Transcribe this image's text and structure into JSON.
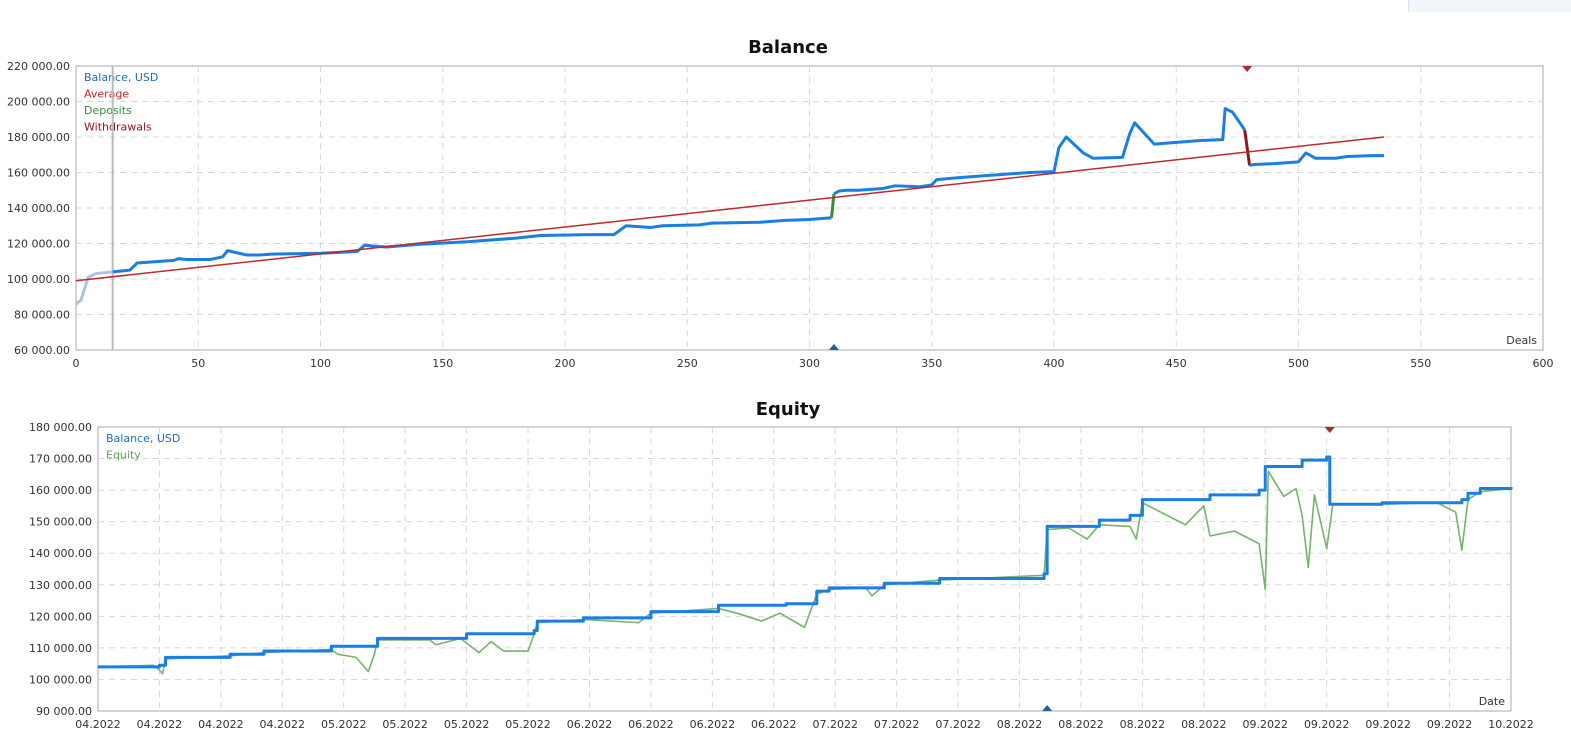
{
  "chart_data": [
    {
      "type": "line",
      "title": "Balance",
      "xlabel": "Deals",
      "xlim": [
        0,
        600
      ],
      "ylim": [
        60000,
        220000
      ],
      "xticks": [
        0,
        50,
        100,
        150,
        200,
        250,
        300,
        350,
        400,
        450,
        500,
        550,
        600
      ],
      "yticks": [
        "60 000.00",
        "80 000.00",
        "100 000.00",
        "120 000.00",
        "140 000.00",
        "160 000.00",
        "180 000.00",
        "200 000.00",
        "220 000.00"
      ],
      "grid": true,
      "legend_position": "top-left",
      "legend": [
        {
          "name": "Balance, USD",
          "color": "#1f6fb5"
        },
        {
          "name": "Average",
          "color": "#c0282a"
        },
        {
          "name": "Deposits",
          "color": "#3f8a3a"
        },
        {
          "name": "Withdrawals",
          "color": "#8b1a1a"
        }
      ],
      "series": [
        {
          "name": "Balance, USD",
          "color": "#1a7fe0",
          "points": [
            [
              0,
              86000
            ],
            [
              2,
              88000
            ],
            [
              5,
              101000
            ],
            [
              8,
              103000
            ],
            [
              15,
              104000
            ],
            [
              22,
              105000
            ],
            [
              25,
              109000
            ],
            [
              30,
              109500
            ],
            [
              35,
              110000
            ],
            [
              40,
              110500
            ],
            [
              42,
              111500
            ],
            [
              45,
              111000
            ],
            [
              55,
              111000
            ],
            [
              60,
              112500
            ],
            [
              62,
              116000
            ],
            [
              65,
              115000
            ],
            [
              70,
              113500
            ],
            [
              75,
              113500
            ],
            [
              80,
              114000
            ],
            [
              100,
              114500
            ],
            [
              115,
              115500
            ],
            [
              118,
              119000
            ],
            [
              122,
              118500
            ],
            [
              127,
              118000
            ],
            [
              140,
              119500
            ],
            [
              160,
              121000
            ],
            [
              180,
              123000
            ],
            [
              190,
              124500
            ],
            [
              210,
              125000
            ],
            [
              220,
              125000
            ],
            [
              225,
              130000
            ],
            [
              235,
              129000
            ],
            [
              240,
              130000
            ],
            [
              255,
              130500
            ],
            [
              260,
              131500
            ],
            [
              280,
              132000
            ],
            [
              290,
              133000
            ],
            [
              300,
              133500
            ],
            [
              309,
              134500
            ]
          ]
        },
        {
          "name": "Deposits",
          "color": "#3f8a3a",
          "points": [
            [
              309,
              134500
            ],
            [
              310,
              148000
            ]
          ]
        },
        {
          "name": "Balance, USD",
          "color": "#1a7fe0",
          "points": [
            [
              310,
              148000
            ],
            [
              312,
              149500
            ],
            [
              315,
              150000
            ],
            [
              320,
              150000
            ],
            [
              330,
              151000
            ],
            [
              335,
              152500
            ],
            [
              345,
              152000
            ],
            [
              350,
              153000
            ],
            [
              352,
              156000
            ],
            [
              360,
              157000
            ],
            [
              370,
              158000
            ],
            [
              380,
              159000
            ],
            [
              390,
              160000
            ],
            [
              400,
              160500
            ],
            [
              402,
              174000
            ],
            [
              405,
              180000
            ],
            [
              412,
              171000
            ],
            [
              416,
              168000
            ],
            [
              428,
              168500
            ],
            [
              431,
              182000
            ],
            [
              433,
              188000
            ],
            [
              437,
              182000
            ],
            [
              441,
              176000
            ],
            [
              450,
              177000
            ],
            [
              460,
              178000
            ],
            [
              469,
              178500
            ],
            [
              470,
              196000
            ],
            [
              473,
              194000
            ],
            [
              478,
              184000
            ]
          ]
        },
        {
          "name": "Withdrawals",
          "color": "#8b1a1a",
          "points": [
            [
              478,
              184000
            ],
            [
              480,
              164000
            ]
          ]
        },
        {
          "name": "Balance, USD",
          "color": "#1a7fe0",
          "points": [
            [
              480,
              164000
            ],
            [
              482,
              164500
            ],
            [
              490,
              165000
            ],
            [
              500,
              166000
            ],
            [
              503,
              171000
            ],
            [
              507,
              168000
            ],
            [
              515,
              168000
            ],
            [
              520,
              169000
            ],
            [
              530,
              169500
            ],
            [
              535,
              169500
            ]
          ]
        },
        {
          "name": "Average",
          "color": "#c0282a",
          "points": [
            [
              0,
              99000
            ],
            [
              535,
              180000
            ]
          ]
        }
      ],
      "markers": [
        {
          "type": "withdrawal",
          "deal": 479,
          "color": "#b0282a"
        },
        {
          "type": "deposit",
          "deal": 310,
          "color": "#1f5f9a"
        }
      ]
    },
    {
      "type": "line",
      "title": "Equity",
      "xlabel": "Date",
      "ylim": [
        90000,
        180000
      ],
      "xticks": [
        "04.2022",
        "04.2022",
        "04.2022",
        "04.2022",
        "05.2022",
        "05.2022",
        "05.2022",
        "05.2022",
        "06.2022",
        "06.2022",
        "06.2022",
        "06.2022",
        "07.2022",
        "07.2022",
        "07.2022",
        "08.2022",
        "08.2022",
        "08.2022",
        "08.2022",
        "09.2022",
        "09.2022",
        "09.2022",
        "09.2022",
        "10.2022"
      ],
      "yticks": [
        "90 000.00",
        "100 000.00",
        "110 000.00",
        "120 000.00",
        "130 000.00",
        "140 000.00",
        "150 000.00",
        "160 000.00",
        "170 000.00",
        "180 000.00"
      ],
      "grid": true,
      "legend_position": "top-left",
      "legend": [
        {
          "name": "Balance, USD",
          "color": "#1f6fb5"
        },
        {
          "name": "Equity",
          "color": "#5aa04f"
        }
      ],
      "series": [
        {
          "name": "Balance, USD",
          "color": "#1a7fe0",
          "step": true,
          "points": [
            [
              0,
              104000
            ],
            [
              1.0,
              104500
            ],
            [
              1.1,
              107000
            ],
            [
              2.15,
              108000
            ],
            [
              2.7,
              109000
            ],
            [
              3.8,
              110500
            ],
            [
              4.55,
              113000
            ],
            [
              6.0,
              114500
            ],
            [
              7.1,
              115500
            ],
            [
              7.15,
              118500
            ],
            [
              7.9,
              119500
            ],
            [
              9.0,
              121500
            ],
            [
              10.1,
              123500
            ],
            [
              11.2,
              124000
            ],
            [
              11.7,
              128000
            ],
            [
              11.9,
              129000
            ],
            [
              12.8,
              130500
            ],
            [
              13.7,
              132000
            ],
            [
              15.4,
              133500
            ],
            [
              15.45,
              148500
            ],
            [
              16.3,
              150500
            ],
            [
              16.8,
              152000
            ],
            [
              17.0,
              157000
            ],
            [
              18.1,
              158500
            ],
            [
              18.9,
              160000
            ],
            [
              19.0,
              167500
            ],
            [
              19.6,
              169500
            ],
            [
              20.0,
              170500
            ],
            [
              20.05,
              155500
            ],
            [
              20.9,
              156000
            ],
            [
              22.2,
              157000
            ],
            [
              22.3,
              159000
            ],
            [
              22.5,
              160500
            ],
            [
              23,
              161000
            ]
          ]
        },
        {
          "name": "Equity",
          "color": "#74b56a",
          "points": [
            [
              0,
              104000
            ],
            [
              0.9,
              104500
            ],
            [
              1.0,
              103000
            ],
            [
              1.05,
              101800
            ],
            [
              1.1,
              106500
            ],
            [
              2.15,
              107500
            ],
            [
              2.7,
              108500
            ],
            [
              3.8,
              109500
            ],
            [
              3.9,
              108000
            ],
            [
              4.2,
              107000
            ],
            [
              4.4,
              102500
            ],
            [
              4.5,
              108000
            ],
            [
              4.55,
              112500
            ],
            [
              5.4,
              112500
            ],
            [
              5.5,
              111000
            ],
            [
              5.9,
              113000
            ],
            [
              6.2,
              108500
            ],
            [
              6.4,
              112000
            ],
            [
              6.6,
              109000
            ],
            [
              7.0,
              109000
            ],
            [
              7.1,
              114500
            ],
            [
              7.15,
              118000
            ],
            [
              7.9,
              119000
            ],
            [
              8.8,
              118000
            ],
            [
              9.0,
              121000
            ],
            [
              10.1,
              122500
            ],
            [
              10.4,
              121000
            ],
            [
              10.8,
              118500
            ],
            [
              11.1,
              121000
            ],
            [
              11.5,
              116500
            ],
            [
              11.7,
              127000
            ],
            [
              11.9,
              128500
            ],
            [
              12.5,
              129000
            ],
            [
              12.6,
              126500
            ],
            [
              12.8,
              130000
            ],
            [
              13.7,
              131500
            ],
            [
              15.4,
              133000
            ],
            [
              15.45,
              147500
            ],
            [
              15.8,
              148000
            ],
            [
              16.1,
              144500
            ],
            [
              16.3,
              149000
            ],
            [
              16.8,
              148500
            ],
            [
              16.9,
              144500
            ],
            [
              17.0,
              156000
            ],
            [
              17.5,
              151000
            ],
            [
              17.7,
              149000
            ],
            [
              18.0,
              155000
            ],
            [
              18.1,
              145500
            ],
            [
              18.5,
              147000
            ],
            [
              18.9,
              143000
            ],
            [
              19.0,
              128500
            ],
            [
              19.05,
              166000
            ],
            [
              19.3,
              158000
            ],
            [
              19.5,
              160500
            ],
            [
              19.6,
              152000
            ],
            [
              19.7,
              135500
            ],
            [
              19.8,
              158500
            ],
            [
              20.0,
              141500
            ],
            [
              20.1,
              155500
            ],
            [
              20.9,
              155500
            ],
            [
              21.8,
              156000
            ],
            [
              22.1,
              153000
            ],
            [
              22.2,
              141000
            ],
            [
              22.3,
              157000
            ],
            [
              22.5,
              159500
            ],
            [
              23,
              160500
            ]
          ]
        }
      ],
      "markers": [
        {
          "type": "withdrawal",
          "x": 20.05,
          "color": "#b0282a"
        },
        {
          "type": "deposit",
          "x": 15.45,
          "color": "#1f5f9a"
        }
      ]
    }
  ]
}
